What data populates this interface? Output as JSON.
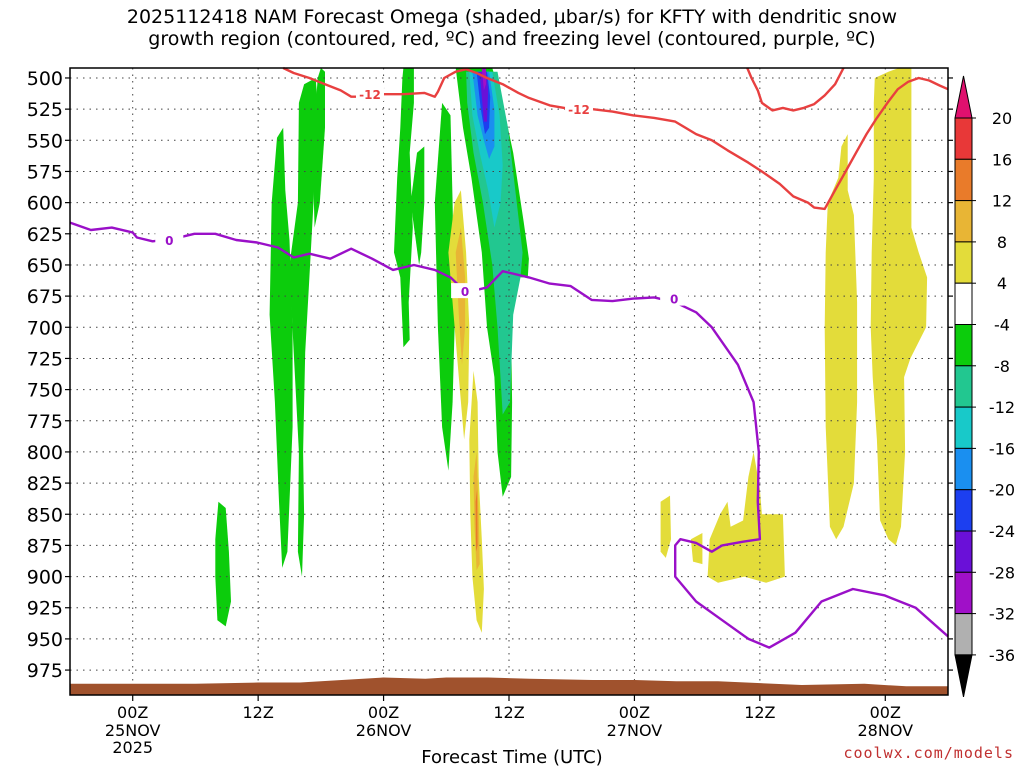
{
  "title": "2025112418 NAM Forecast Omega (shaded, μbar/s) for KFTY with dendritic snow\ngrowth region (contoured, red, ºC) and freezing level (contoured, purple, ºC)",
  "credit": "coolwx.com/models",
  "chart_data": {
    "type": "time-height cross section",
    "xlabel": "Forecast Time (UTC)",
    "ylabel": "",
    "x_ticks": [
      {
        "hour": 6,
        "label": "00Z",
        "sub": [
          "25NOV",
          "2025"
        ]
      },
      {
        "hour": 18,
        "label": "12Z",
        "sub": []
      },
      {
        "hour": 30,
        "label": "00Z",
        "sub": [
          "26NOV"
        ]
      },
      {
        "hour": 42,
        "label": "12Z",
        "sub": []
      },
      {
        "hour": 54,
        "label": "00Z",
        "sub": [
          "27NOV"
        ]
      },
      {
        "hour": 66,
        "label": "12Z",
        "sub": []
      },
      {
        "hour": 78,
        "label": "00Z",
        "sub": [
          "28NOV"
        ]
      }
    ],
    "x_range_hours": [
      0,
      84
    ],
    "y_ticks_hpa": [
      500,
      525,
      550,
      575,
      600,
      625,
      650,
      675,
      700,
      725,
      750,
      775,
      800,
      825,
      850,
      875,
      900,
      925,
      950,
      975
    ],
    "y_range_hpa": [
      492,
      995
    ],
    "grid": true,
    "colorbar": {
      "labels": [
        "20",
        "16",
        "12",
        "8",
        "4",
        "-4",
        "-8",
        "-12",
        "-16",
        "-20",
        "-24",
        "-28",
        "-32",
        "-36"
      ],
      "colors": [
        "#e0106e",
        "#e83838",
        "#e97b2a",
        "#e8b535",
        "#e3dc3a",
        "#ffffff",
        "#0ccc0c",
        "#22c790",
        "#18c9c9",
        "#1a8ff0",
        "#1c3ff0",
        "#6a10d8",
        "#a010c8",
        "#b0b0b0",
        "#000000"
      ]
    },
    "contours": [
      {
        "name": "dendritic -12°C",
        "color": "#e84040",
        "value_label": "-12",
        "points": [
          [
            20.4,
            492
          ],
          [
            21.4,
            496
          ],
          [
            22.9,
            500
          ],
          [
            24.4,
            505
          ],
          [
            25.9,
            510
          ],
          [
            26.9,
            515
          ],
          [
            28.9,
            515
          ],
          [
            29.9,
            513
          ],
          [
            31.9,
            513
          ],
          [
            33.9,
            512
          ],
          [
            34.9,
            515
          ],
          [
            35.2,
            511
          ],
          [
            35.8,
            500
          ],
          [
            36.9,
            495
          ],
          [
            37.9,
            493
          ],
          [
            38.9,
            496
          ],
          [
            39.9,
            500
          ],
          [
            41.4,
            505
          ],
          [
            42.9,
            512
          ],
          [
            43.9,
            516
          ],
          [
            45.9,
            522
          ],
          [
            47.9,
            525
          ],
          [
            49.9,
            525
          ],
          [
            51.9,
            527
          ],
          [
            53.9,
            530
          ],
          [
            55.9,
            532
          ],
          [
            57.9,
            535
          ],
          [
            59.9,
            545
          ],
          [
            61.4,
            550
          ],
          [
            62.9,
            558
          ],
          [
            64.9,
            568
          ],
          [
            66.2,
            575
          ],
          [
            67.9,
            585
          ],
          [
            69.2,
            595
          ],
          [
            70.6,
            600
          ],
          [
            71.2,
            604
          ],
          [
            72.2,
            605
          ],
          [
            73.2,
            590
          ],
          [
            74.2,
            575
          ],
          [
            75.2,
            560
          ],
          [
            76.2,
            545
          ],
          [
            77.2,
            532
          ],
          [
            78.2,
            520
          ],
          [
            79.2,
            509
          ],
          [
            80.2,
            503
          ],
          [
            81.2,
            500
          ],
          [
            82.2,
            502
          ],
          [
            83.2,
            506
          ],
          [
            84,
            509
          ]
        ]
      },
      {
        "name": "dendritic -12°C upper",
        "color": "#e84040",
        "value_label": "",
        "points": [
          [
            64.8,
            492
          ],
          [
            65.2,
            500
          ],
          [
            65.8,
            510
          ],
          [
            66.2,
            520
          ],
          [
            67.2,
            526
          ],
          [
            68.2,
            524
          ],
          [
            69.2,
            526
          ],
          [
            70.2,
            524
          ],
          [
            71.2,
            521
          ],
          [
            72.2,
            514
          ],
          [
            73.2,
            505
          ],
          [
            74.0,
            492
          ]
        ]
      },
      {
        "name": "freezing level 0°C",
        "color": "#9a10c8",
        "value_label": "0",
        "points": [
          [
            0,
            616
          ],
          [
            2,
            622
          ],
          [
            4,
            620
          ],
          [
            6,
            624
          ],
          [
            6.4,
            628
          ],
          [
            7.9,
            631
          ],
          [
            9.9,
            629
          ],
          [
            11.9,
            625
          ],
          [
            13.9,
            625
          ],
          [
            15.9,
            630
          ],
          [
            17.9,
            632
          ],
          [
            19.9,
            636
          ],
          [
            21.4,
            644
          ],
          [
            22.9,
            641
          ],
          [
            24.9,
            645
          ],
          [
            26.9,
            637
          ],
          [
            28.9,
            645
          ],
          [
            30.9,
            654
          ],
          [
            32.9,
            650
          ],
          [
            34.9,
            654
          ],
          [
            36.4,
            660
          ],
          [
            37.9,
            672
          ],
          [
            39.9,
            668
          ],
          [
            41.4,
            655
          ],
          [
            43.9,
            660
          ],
          [
            45.9,
            665
          ],
          [
            47.9,
            667
          ],
          [
            49.9,
            678
          ],
          [
            51.9,
            679
          ],
          [
            53.9,
            677
          ],
          [
            55.9,
            676
          ],
          [
            57.9,
            680
          ],
          [
            59.9,
            688
          ],
          [
            61.4,
            700
          ],
          [
            63.9,
            730
          ],
          [
            65.4,
            760
          ],
          [
            65.9,
            800
          ],
          [
            65.8,
            840
          ],
          [
            66.0,
            870
          ],
          [
            64.4,
            872
          ],
          [
            62.4,
            875
          ],
          [
            61.4,
            880
          ],
          [
            59.9,
            873
          ],
          [
            58.4,
            870
          ],
          [
            57.9,
            875
          ],
          [
            57.9,
            900
          ],
          [
            59.9,
            920
          ],
          [
            62.4,
            935
          ],
          [
            64.9,
            950
          ],
          [
            66.9,
            957
          ],
          [
            69.4,
            945
          ],
          [
            71.9,
            920
          ],
          [
            74.9,
            910
          ],
          [
            77.9,
            915
          ],
          [
            80.9,
            925
          ],
          [
            84,
            948
          ]
        ]
      }
    ],
    "shaded_regions": [
      {
        "omega": "-4 to -8",
        "color": "#0ccc0c"
      },
      {
        "omega": "-8 to -12",
        "color": "#22c790"
      },
      {
        "omega": "-12 to -16",
        "color": "#18c9c9"
      },
      {
        "omega": "-16 to -20",
        "color": "#1a8ff0"
      },
      {
        "omega": "-20 to -24",
        "color": "#1c3ff0"
      },
      {
        "omega": "-24 to -28",
        "color": "#6a10d8"
      },
      {
        "omega": "-28 to -32",
        "color": "#a010c8"
      },
      {
        "omega": "4 to 8",
        "color": "#e3dc3a"
      },
      {
        "omega": "8 to 12",
        "color": "#e8b535"
      },
      {
        "omega": "12 to 16",
        "color": "#e97b2a"
      }
    ]
  }
}
